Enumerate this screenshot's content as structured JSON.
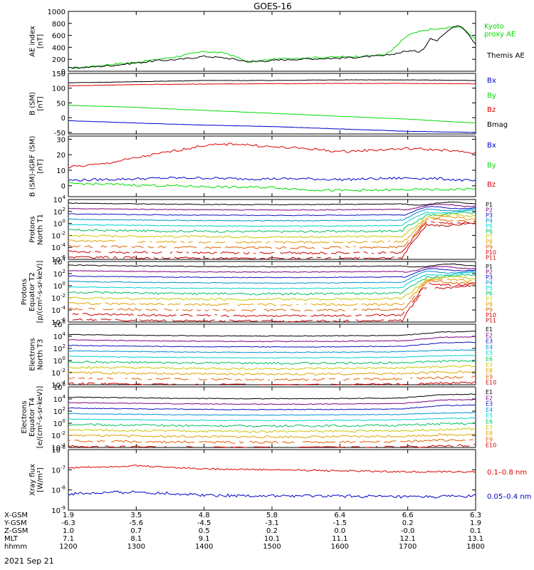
{
  "title": "GOES-16",
  "date_label": "2021 Sep 21",
  "colors": {
    "black": "#000000",
    "green": "#00dd00",
    "red": "#dd0000",
    "blue": "#0000cc",
    "P1": "#000000",
    "P2": "#7f007f",
    "P3": "#1010c0",
    "P4": "#0090d0",
    "P5": "#00d0d0",
    "P6": "#00c060",
    "P7": "#c8c800",
    "P8": "#e0a000",
    "P9": "#e06000",
    "P10": "#d00000",
    "P11": "#c00000"
  },
  "chart_data": [
    {
      "type": "line",
      "panel": "ae",
      "ylabel": [
        "AE index",
        "[nT]"
      ],
      "ylim": [
        0,
        1000
      ],
      "yticks": [
        "1000",
        "800",
        "600",
        "400",
        "200",
        "0"
      ],
      "x": [
        1200,
        1220,
        1240,
        1300,
        1320,
        1340,
        1400,
        1420,
        1440,
        1500,
        1520,
        1540,
        1600,
        1620,
        1640,
        1645,
        1650,
        1700,
        1710,
        1715,
        1720,
        1725,
        1730,
        1740,
        1745,
        1750,
        1800
      ],
      "series": [
        {
          "name": "Kyoto proxy AE",
          "color": "green",
          "values": [
            50,
            80,
            120,
            150,
            200,
            260,
            330,
            300,
            150,
            200,
            220,
            230,
            240,
            250,
            280,
            330,
            420,
            600,
            660,
            680,
            700,
            700,
            710,
            740,
            740,
            700,
            540
          ]
        },
        {
          "name": "Themis AE",
          "color": "black",
          "values": [
            50,
            70,
            100,
            140,
            180,
            200,
            250,
            220,
            160,
            180,
            200,
            210,
            220,
            240,
            260,
            280,
            300,
            340,
            330,
            400,
            550,
            500,
            600,
            750,
            770,
            700,
            450
          ]
        }
      ]
    },
    {
      "type": "line",
      "panel": "b_sm",
      "ylabel": [
        "B (SM)",
        "[nT]"
      ],
      "ylim": [
        -55,
        150
      ],
      "yticks": [
        "150",
        "100",
        "50",
        "0",
        "-50"
      ],
      "x": [
        1200,
        1300,
        1400,
        1500,
        1600,
        1700,
        1800
      ],
      "series": [
        {
          "name": "Bx",
          "color": "blue",
          "values": [
            -10,
            -18,
            -25,
            -30,
            -38,
            -46,
            -50
          ]
        },
        {
          "name": "By",
          "color": "green",
          "values": [
            42,
            35,
            25,
            15,
            5,
            -5,
            -18
          ]
        },
        {
          "name": "Bz",
          "color": "red",
          "values": [
            108,
            112,
            114,
            115,
            116,
            116,
            115
          ]
        },
        {
          "name": "Bmag",
          "color": "black",
          "values": [
            118,
            122,
            126,
            126,
            128,
            128,
            126
          ]
        }
      ]
    },
    {
      "type": "line",
      "panel": "b_igrf",
      "ylabel": [
        "B (SM)-IGRF (SM)",
        "[nT]"
      ],
      "ylim": [
        -7,
        32
      ],
      "yticks": [
        "30",
        "20",
        "10",
        "0"
      ],
      "x": [
        1200,
        1230,
        1300,
        1330,
        1400,
        1430,
        1500,
        1530,
        1600,
        1630,
        1700,
        1730,
        1800
      ],
      "series": [
        {
          "name": "Bx",
          "color": "blue",
          "values": [
            3.5,
            4,
            4.5,
            5,
            5,
            4.5,
            4.5,
            4.5,
            4,
            4.5,
            5,
            4.5,
            3
          ]
        },
        {
          "name": "By",
          "color": "green",
          "values": [
            1.5,
            1,
            0.5,
            0,
            -0.5,
            -1,
            -1,
            -2.5,
            -3,
            -3,
            -2.5,
            -2.5,
            -2
          ]
        },
        {
          "name": "Bz",
          "color": "red",
          "values": [
            12,
            14,
            18,
            22,
            26,
            27,
            25,
            24,
            22,
            23,
            24,
            23,
            21
          ]
        }
      ]
    },
    {
      "type": "line",
      "panel": "protons_t1",
      "log": true,
      "ylabel": [
        "Protons",
        "North T1"
      ],
      "ylim_exp": [
        -6,
        4
      ],
      "yticks_exp": [
        4,
        2,
        0,
        -2,
        -4,
        -6
      ],
      "legend": [
        "P1",
        "P2",
        "P3",
        "P4",
        "P5",
        "P6",
        "P7",
        "P8",
        "P9",
        "P10",
        "P11"
      ]
    },
    {
      "type": "line",
      "panel": "protons_t2",
      "log": true,
      "ylabel": [
        "Protons",
        "Equator T2",
        "[p/(cm²-s-sr-keV)]"
      ],
      "ylim_exp": [
        -6,
        4
      ],
      "yticks_exp": [
        4,
        2,
        0,
        -2,
        -4,
        -6
      ],
      "legend": [
        "P1",
        "P2",
        "P3",
        "P4",
        "P5",
        "P6",
        "P7",
        "P8",
        "P9",
        "P10",
        "P11"
      ]
    },
    {
      "type": "line",
      "panel": "electrons_t3",
      "log": true,
      "ylabel": [
        "Electrons",
        "North T3"
      ],
      "ylim_exp": [
        -4,
        6
      ],
      "yticks_exp": [
        6,
        4,
        2,
        0,
        -2,
        -4
      ],
      "legend": [
        "E1",
        "E2",
        "E3",
        "E4",
        "E5",
        "E6",
        "E7",
        "E8",
        "E9",
        "E10"
      ]
    },
    {
      "type": "line",
      "panel": "electrons_t4",
      "log": true,
      "ylabel": [
        "Electrons",
        "Equator T4",
        "[e/(cm²-s-sr-keV)]"
      ],
      "ylim_exp": [
        -4,
        6
      ],
      "yticks_exp": [
        6,
        4,
        2,
        0,
        -2,
        -4
      ],
      "legend": [
        "E1",
        "E2",
        "E3",
        "E4",
        "E5",
        "E6",
        "E7",
        "E8",
        "E9",
        "E10"
      ]
    },
    {
      "type": "line",
      "panel": "xray",
      "log": true,
      "ylabel": [
        "Xray flux",
        "[W/m²]"
      ],
      "ylim_exp": [
        -9,
        -6
      ],
      "yticks_exp": [
        -6,
        -7,
        -8,
        -9
      ],
      "series": [
        {
          "name": "0.1–0.8 nm",
          "color": "red",
          "values_exp": [
            -6.9,
            -6.8,
            -6.95,
            -7.0,
            -7.05,
            -7.1,
            -7.1
          ]
        },
        {
          "name": "0.05–0.4 nm",
          "color": "blue",
          "values_exp": [
            -8.2,
            -8.1,
            -8.25,
            -8.3,
            -8.3,
            -8.35,
            -8.3
          ]
        }
      ]
    }
  ],
  "xaxis": {
    "row_labels": [
      "X-GSM",
      "Y-GSM",
      "Z-GSM",
      "MLT",
      "hhmm"
    ],
    "columns": [
      [
        "1.9",
        "-6.3",
        "1.0",
        "7.1",
        "1200"
      ],
      [
        "3.5",
        "-5.6",
        "0.7",
        "8.1",
        "1300"
      ],
      [
        "4.8",
        "-4.5",
        "0.5",
        "9.1",
        "1400"
      ],
      [
        "5.8",
        "-3.1",
        "0.2",
        "10.1",
        "1500"
      ],
      [
        "6.4",
        "-1.5",
        "0.0",
        "11.1",
        "1600"
      ],
      [
        "6.6",
        "0.2",
        "-0.0",
        "12.1",
        "1700"
      ],
      [
        "6.3",
        "1.9",
        "0.1",
        "13.1",
        "1800"
      ]
    ]
  }
}
